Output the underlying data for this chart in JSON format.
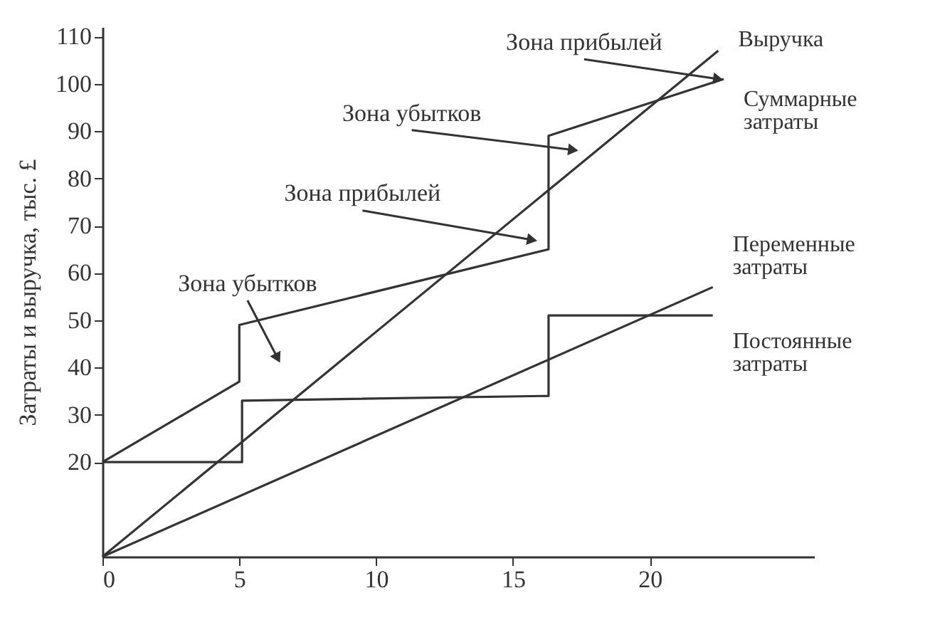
{
  "chart_data": {
    "type": "line",
    "ylabel": "Затраты и выручка, тыс. £",
    "xlim": [
      0,
      26
    ],
    "ylim": [
      0,
      112
    ],
    "xticks": [
      0,
      5,
      10,
      15,
      20
    ],
    "yticks": [
      20,
      30,
      40,
      50,
      60,
      70,
      80,
      90,
      100,
      110
    ],
    "grid": false,
    "marker": "none",
    "line_style": "solid",
    "series": [
      {
        "name": "Выручка",
        "color": "#333333",
        "x": [
          0,
          22.5
        ],
        "values": [
          0,
          107
        ]
      },
      {
        "name": "Суммарные затраты",
        "color": "#333333",
        "x": [
          0,
          5,
          5,
          16.3,
          16.3,
          22.7
        ],
        "values": [
          20,
          37,
          49,
          65,
          89,
          101
        ]
      },
      {
        "name": "Переменные затраты",
        "color": "#333333",
        "x": [
          0,
          22.3
        ],
        "values": [
          0,
          57
        ]
      },
      {
        "name": "Постоянные затраты",
        "color": "#333333",
        "x": [
          0,
          5.1,
          5.1,
          16.3,
          16.3,
          22.3
        ],
        "values": [
          20,
          20,
          33,
          34,
          51,
          51
        ]
      }
    ],
    "annotations": [
      "Зона убытков",
      {
        "text": "Зона прибылей",
        "x": 15.7,
        "y": 67
      },
      {
        "text": "Зона убытков",
        "x": 17.2,
        "y": 86
      },
      {
        "text": "Зона прибылей",
        "x": 22.5,
        "y": 101
      }
    ]
  }
}
